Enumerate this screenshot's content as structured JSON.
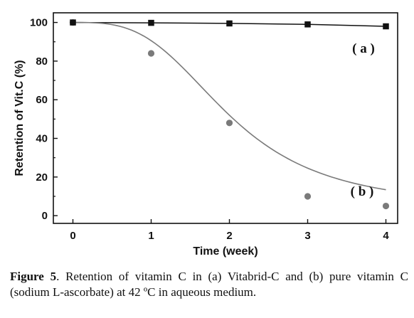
{
  "chart_data": {
    "type": "scatter",
    "xlabel": "Time (week)",
    "ylabel": "Retention of Vit.C (%)",
    "xlim": [
      -0.25,
      4.15
    ],
    "ylim": [
      -4,
      105
    ],
    "x_ticks": [
      "0",
      "1",
      "2",
      "3",
      "4"
    ],
    "y_ticks": [
      "0",
      "20",
      "40",
      "60",
      "80",
      "100"
    ],
    "grid": false,
    "series": [
      {
        "name": "( a )",
        "marker": "square",
        "color": "#111111",
        "x": [
          0,
          1,
          2,
          3,
          4
        ],
        "y": [
          100,
          99.8,
          99.5,
          99,
          98
        ]
      },
      {
        "name": "( b )",
        "marker": "circle",
        "color": "#7a7a7a",
        "x": [
          0,
          1,
          2,
          3,
          4
        ],
        "y": [
          100,
          84,
          48,
          10,
          5
        ]
      }
    ]
  },
  "caption": {
    "prefix": "Figure 5",
    "text": ". Retention of vitamin C in (a) Vitabrid-C and (b) pure vitamin C (sodium L-ascorbate) at 42 ºC in aqueous medium."
  }
}
